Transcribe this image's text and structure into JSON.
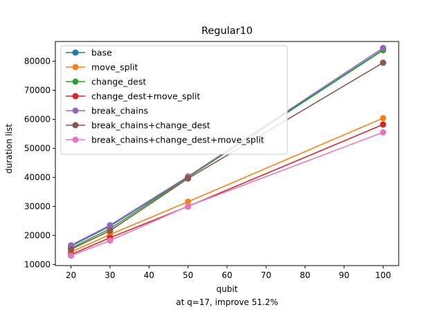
{
  "chart_data": {
    "type": "line",
    "title": "Regular10",
    "xlabel": "qubit",
    "xlabel_note": "at q=17, improve 51.2%",
    "ylabel": "duration list",
    "x": [
      20,
      30,
      50,
      100
    ],
    "xlim": [
      16,
      104
    ],
    "ylim": [
      9600,
      86800
    ],
    "xticks": [
      20,
      30,
      40,
      50,
      60,
      70,
      80,
      90,
      100
    ],
    "yticks": [
      10000,
      20000,
      30000,
      40000,
      50000,
      60000,
      70000,
      80000
    ],
    "grid": false,
    "legend_position": "upper-left",
    "series": [
      {
        "name": "base",
        "color": "#1f77b4",
        "values": [
          16300,
          23200,
          40100,
          84000
        ]
      },
      {
        "name": "move_split",
        "color": "#ff7f0e",
        "values": [
          14300,
          20300,
          31600,
          60400
        ]
      },
      {
        "name": "change_dest",
        "color": "#2ca02c",
        "values": [
          15600,
          22300,
          40000,
          83800
        ]
      },
      {
        "name": "change_dest+move_split",
        "color": "#d62728",
        "values": [
          13400,
          19200,
          30000,
          58200
        ]
      },
      {
        "name": "break_chains",
        "color": "#9467bd",
        "values": [
          16600,
          23500,
          40300,
          84600
        ]
      },
      {
        "name": "break_chains+change_dest",
        "color": "#8c564b",
        "values": [
          15200,
          21600,
          39600,
          79500
        ]
      },
      {
        "name": "break_chains+change_dest+move_split",
        "color": "#e377c2",
        "values": [
          13000,
          18200,
          30100,
          55500
        ]
      }
    ]
  }
}
